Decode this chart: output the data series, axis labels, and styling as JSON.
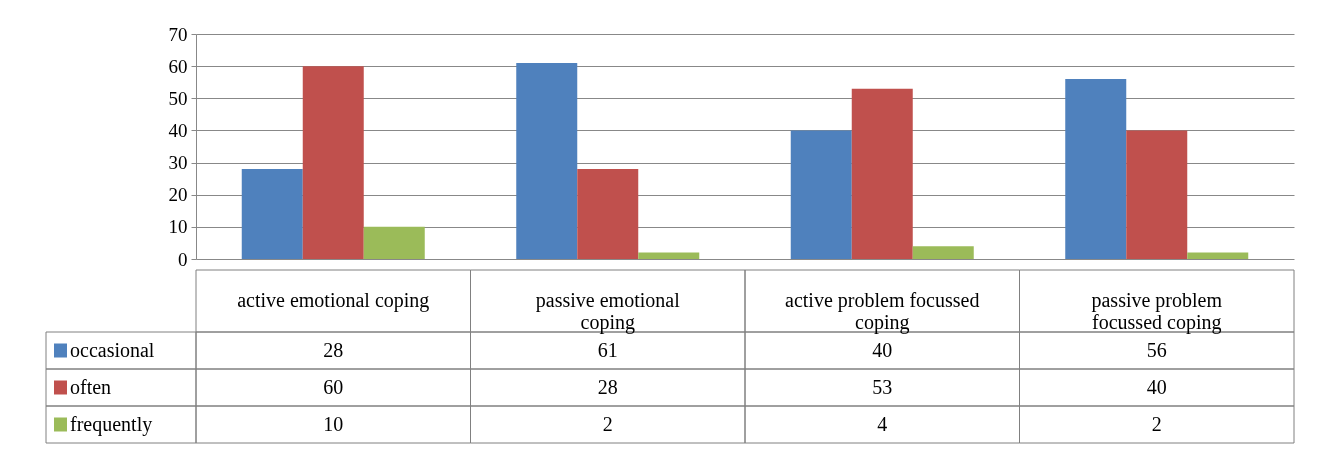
{
  "chart_data": {
    "type": "bar",
    "categories": [
      "active emotional coping",
      "passive emotional coping",
      "active problem focussed coping",
      "passive problem focussed coping"
    ],
    "series": [
      {
        "name": "occasional",
        "color": "#4f81bd",
        "values": [
          28,
          61,
          40,
          56
        ]
      },
      {
        "name": "often",
        "color": "#c0504d",
        "values": [
          60,
          28,
          53,
          40
        ]
      },
      {
        "name": "frequently",
        "color": "#9bbb59",
        "values": [
          10,
          2,
          4,
          2
        ]
      }
    ],
    "ylim": [
      0,
      70
    ],
    "yticks": [
      0,
      10,
      20,
      30,
      40,
      50,
      60,
      70
    ],
    "grid": "y",
    "data_labels": true,
    "legend": "bottom left"
  }
}
